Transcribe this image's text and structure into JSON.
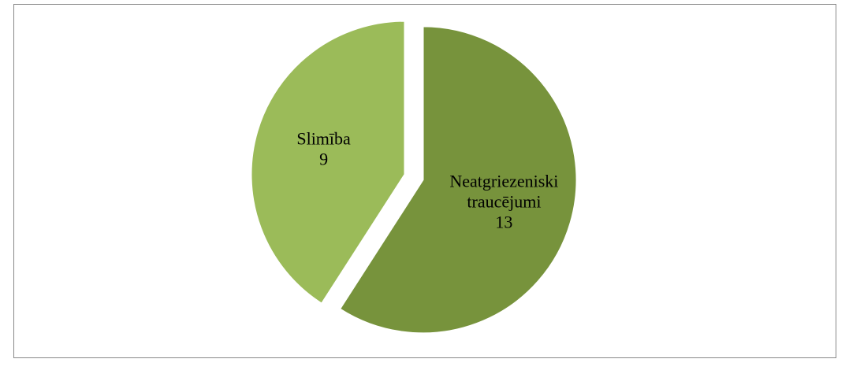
{
  "chart_data": {
    "type": "pie",
    "categories": [
      "Neatgriezeniski traucējumi",
      "Slimība"
    ],
    "values": [
      13,
      9
    ],
    "colors": [
      "#77933c",
      "#9bbb59"
    ],
    "exploded": true
  }
}
